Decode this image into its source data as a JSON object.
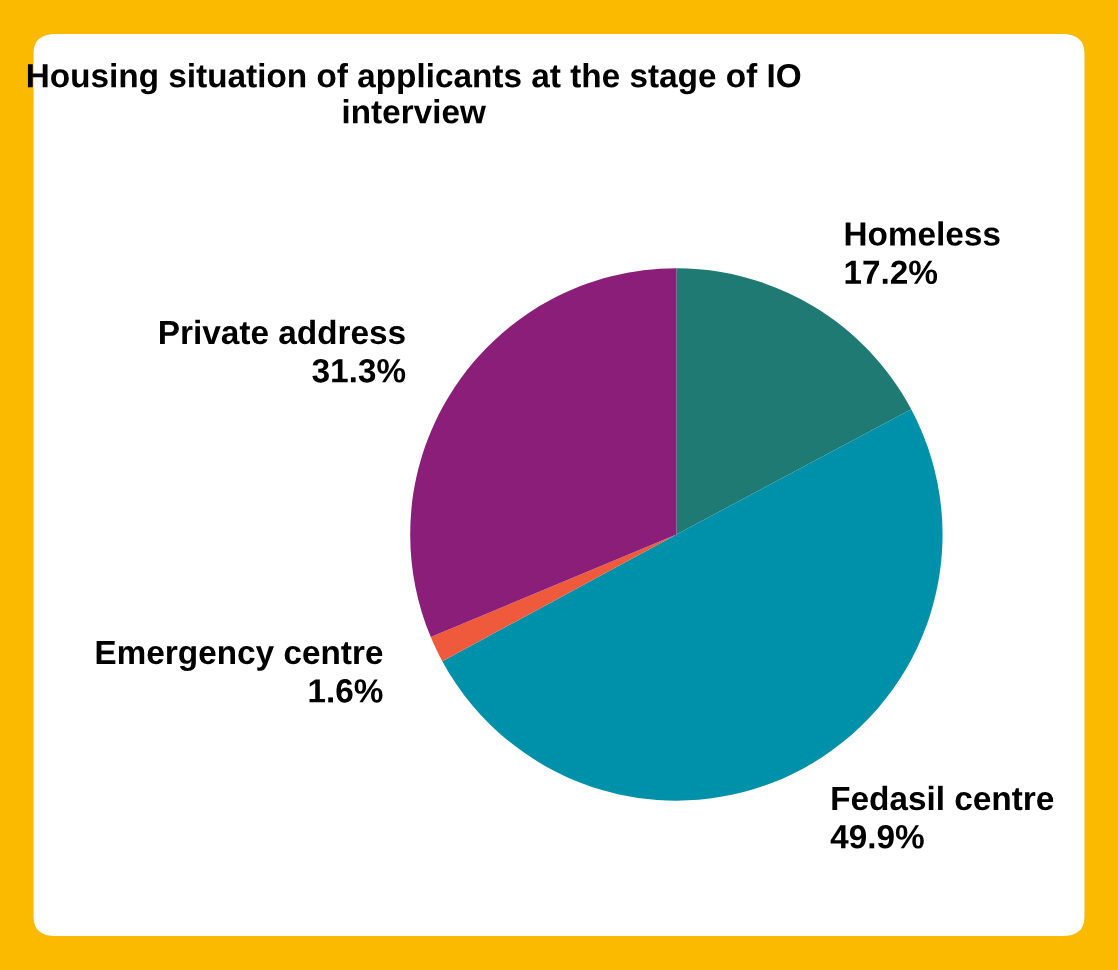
{
  "chart_data": {
    "type": "pie",
    "title": "Housing situation of applicants at the stage of IO interview",
    "categories": [
      "Homeless",
      "Fedasil centre",
      "Emergency centre",
      "Private address"
    ],
    "values": [
      17.2,
      49.9,
      1.6,
      31.3
    ],
    "value_labels": [
      "17.2%",
      "49.9%",
      "1.6%",
      "31.3%"
    ],
    "colors": [
      "#1e7a72",
      "#0091aa",
      "#f05a3c",
      "#8a1e78"
    ],
    "legend": false
  }
}
